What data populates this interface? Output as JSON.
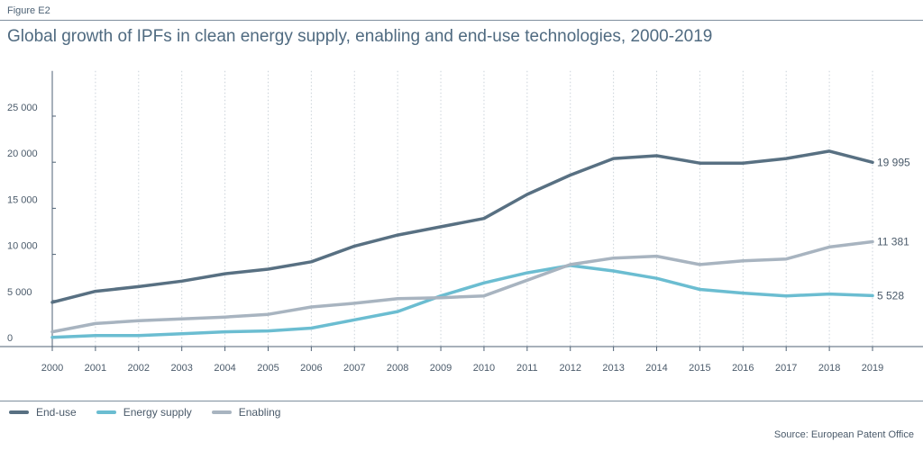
{
  "figure_label": "Figure E2",
  "title": "Global growth of IPFs in clean energy supply, enabling and end-use technologies, 2000-2019",
  "source": "Source: European Patent Office",
  "chart_data": {
    "type": "line",
    "x": [
      "2000",
      "2001",
      "2002",
      "2003",
      "2004",
      "2005",
      "2006",
      "2007",
      "2008",
      "2009",
      "2010",
      "2011",
      "2012",
      "2013",
      "2014",
      "2015",
      "2016",
      "2017",
      "2018",
      "2019"
    ],
    "y_ticks": [
      0,
      5000,
      10000,
      15000,
      20000,
      25000
    ],
    "y_tick_labels": [
      "0",
      "5 000",
      "10 000",
      "15 000",
      "20 000",
      "25 000"
    ],
    "ylim": [
      0,
      30000
    ],
    "grid": "vertical-dotted",
    "legend_position": "bottom-left",
    "series": [
      {
        "name": "End-use",
        "color": "#587082",
        "values": [
          4800,
          6000,
          6500,
          7100,
          7900,
          8400,
          9200,
          10900,
          12100,
          13000,
          13900,
          16500,
          18600,
          20400,
          20700,
          19900,
          19900,
          20400,
          21200,
          19995
        ],
        "end_label": "19 995"
      },
      {
        "name": "Energy supply",
        "color": "#6bbdd1",
        "values": [
          1000,
          1200,
          1200,
          1400,
          1600,
          1700,
          2000,
          2900,
          3800,
          5500,
          6900,
          8000,
          8800,
          8200,
          7400,
          6200,
          5800,
          5500,
          5700,
          5528
        ],
        "end_label": "5 528"
      },
      {
        "name": "Enabling",
        "color": "#a8b4c0",
        "values": [
          1600,
          2500,
          2800,
          3000,
          3200,
          3500,
          4300,
          4700,
          5200,
          5300,
          5500,
          7200,
          8900,
          9600,
          9800,
          8900,
          9300,
          9500,
          10800,
          11381
        ],
        "end_label": "11 381"
      }
    ]
  }
}
